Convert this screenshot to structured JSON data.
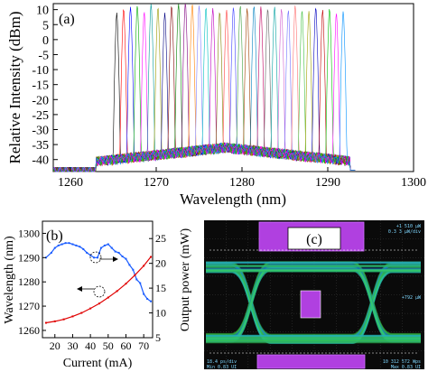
{
  "chart_data": [
    {
      "panel": "(a)",
      "type": "line",
      "title": "",
      "xlabel": "Wavelength (nm)",
      "ylabel": "Relative Intensity (dBm)",
      "xlim": [
        1258,
        1300
      ],
      "ylim": [
        -44,
        12
      ],
      "x_ticks": [
        1260,
        1270,
        1280,
        1290,
        1300
      ],
      "y_ticks": [
        10,
        5,
        0,
        -5,
        -10,
        -15,
        -20,
        -25,
        -30,
        -35,
        -40
      ],
      "grid": false,
      "legend": "none",
      "peaks": {
        "center_nm": [
          1265.4,
          1266.2,
          1267.0,
          1267.8,
          1268.6,
          1269.4,
          1270.2,
          1271.0,
          1271.8,
          1272.6,
          1273.4,
          1274.2,
          1275.0,
          1275.8,
          1276.6,
          1277.4,
          1278.2,
          1279.0,
          1279.8,
          1280.6,
          1281.4,
          1282.2,
          1283.0,
          1283.8,
          1284.6,
          1285.4,
          1286.2,
          1287.0,
          1287.8,
          1288.6,
          1289.4,
          1290.2,
          1291.0,
          1291.8
        ],
        "peak_dBm": [
          9.0,
          10.5,
          11.0,
          11.5,
          9.5,
          12.0,
          11.0,
          9.0,
          11.5,
          12.0,
          12.5,
          12.0,
          11.5,
          11.0,
          10.5,
          9.5,
          10.0,
          11.0,
          11.5,
          10.5,
          11.5,
          11.0,
          10.5,
          11.0,
          10.5,
          10.0,
          11.5,
          10.0,
          9.5,
          11.0,
          10.0,
          10.5,
          9.0,
          9.5
        ],
        "colors": [
          "#000000",
          "#ff0000",
          "#0000ff",
          "#00aa00",
          "#ff00ff",
          "#009999",
          "#999900",
          "#000080",
          "#800000",
          "#008000",
          "#800080",
          "#ff8000",
          "#8080ff",
          "#00c0c0",
          "#c000c0",
          "#808000",
          "#ff4040",
          "#4040ff",
          "#40a040",
          "#a04000",
          "#0080c0",
          "#c00060",
          "#606060",
          "#00a0a0",
          "#d060d0",
          "#7070ff",
          "#ff7070",
          "#40c040",
          "#a0a000",
          "#0000c0",
          "#c00000",
          "#00c000",
          "#ff00ff",
          "#0090ff"
        ]
      }
    },
    {
      "panel": "(b)",
      "type": "line",
      "title": "",
      "xlabel": "Current (mA)",
      "ylabel_left": "Wavelength (nm)",
      "ylabel_right": "Output power (mW)",
      "xlim": [
        13,
        75
      ],
      "ylim_left": [
        1257,
        1305
      ],
      "ylim_right": [
        5,
        28.5
      ],
      "x_ticks": [
        20,
        30,
        40,
        50,
        60,
        70
      ],
      "y_ticks_left": [
        1260,
        1270,
        1280,
        1290,
        1300
      ],
      "y_ticks_right": [
        5,
        10,
        15,
        20,
        25
      ],
      "series": [
        {
          "axis": "left",
          "color": "#1a5cff",
          "x": [
            15,
            18,
            20,
            22,
            24,
            26,
            28,
            30,
            32,
            34,
            36,
            38,
            40,
            42,
            44,
            45,
            46,
            48,
            50,
            52,
            54,
            56,
            58,
            60,
            62,
            64,
            66,
            68,
            70,
            72,
            74
          ],
          "y": [
            1290,
            1292,
            1294,
            1295,
            1295.5,
            1296,
            1296,
            1295.5,
            1295,
            1294.5,
            1293.5,
            1292,
            1291,
            1290,
            1290,
            1292,
            1294,
            1295,
            1295.5,
            1294,
            1292.5,
            1292,
            1290.5,
            1289.5,
            1287,
            1285,
            1281,
            1279.5,
            1275,
            1273,
            1272
          ]
        },
        {
          "axis": "right",
          "color": "#e00000",
          "x": [
            15,
            20,
            25,
            30,
            35,
            40,
            45,
            50,
            55,
            60,
            65,
            70,
            74
          ],
          "y": [
            8.0,
            8.3,
            8.7,
            9.3,
            10.0,
            10.9,
            11.9,
            13.1,
            14.4,
            15.9,
            17.6,
            19.5,
            21.3
          ]
        }
      ]
    },
    {
      "panel": "(c)",
      "type": "other",
      "readout": {
        "top_right_1": "+1 510 μW",
        "top_right_2": "0.3 3 μW/div",
        "right_mid": "+792 μW",
        "bottom_left_1": "18.4 ps/div",
        "bottom_left_2": "Min 0.83 UI",
        "bottom_right_1": "10 312 572 Wps",
        "bottom_right_2": "Max 0.83 UI"
      }
    }
  ],
  "panel_labels": {
    "a": "(a)",
    "b": "(b)",
    "c": "(c)"
  }
}
